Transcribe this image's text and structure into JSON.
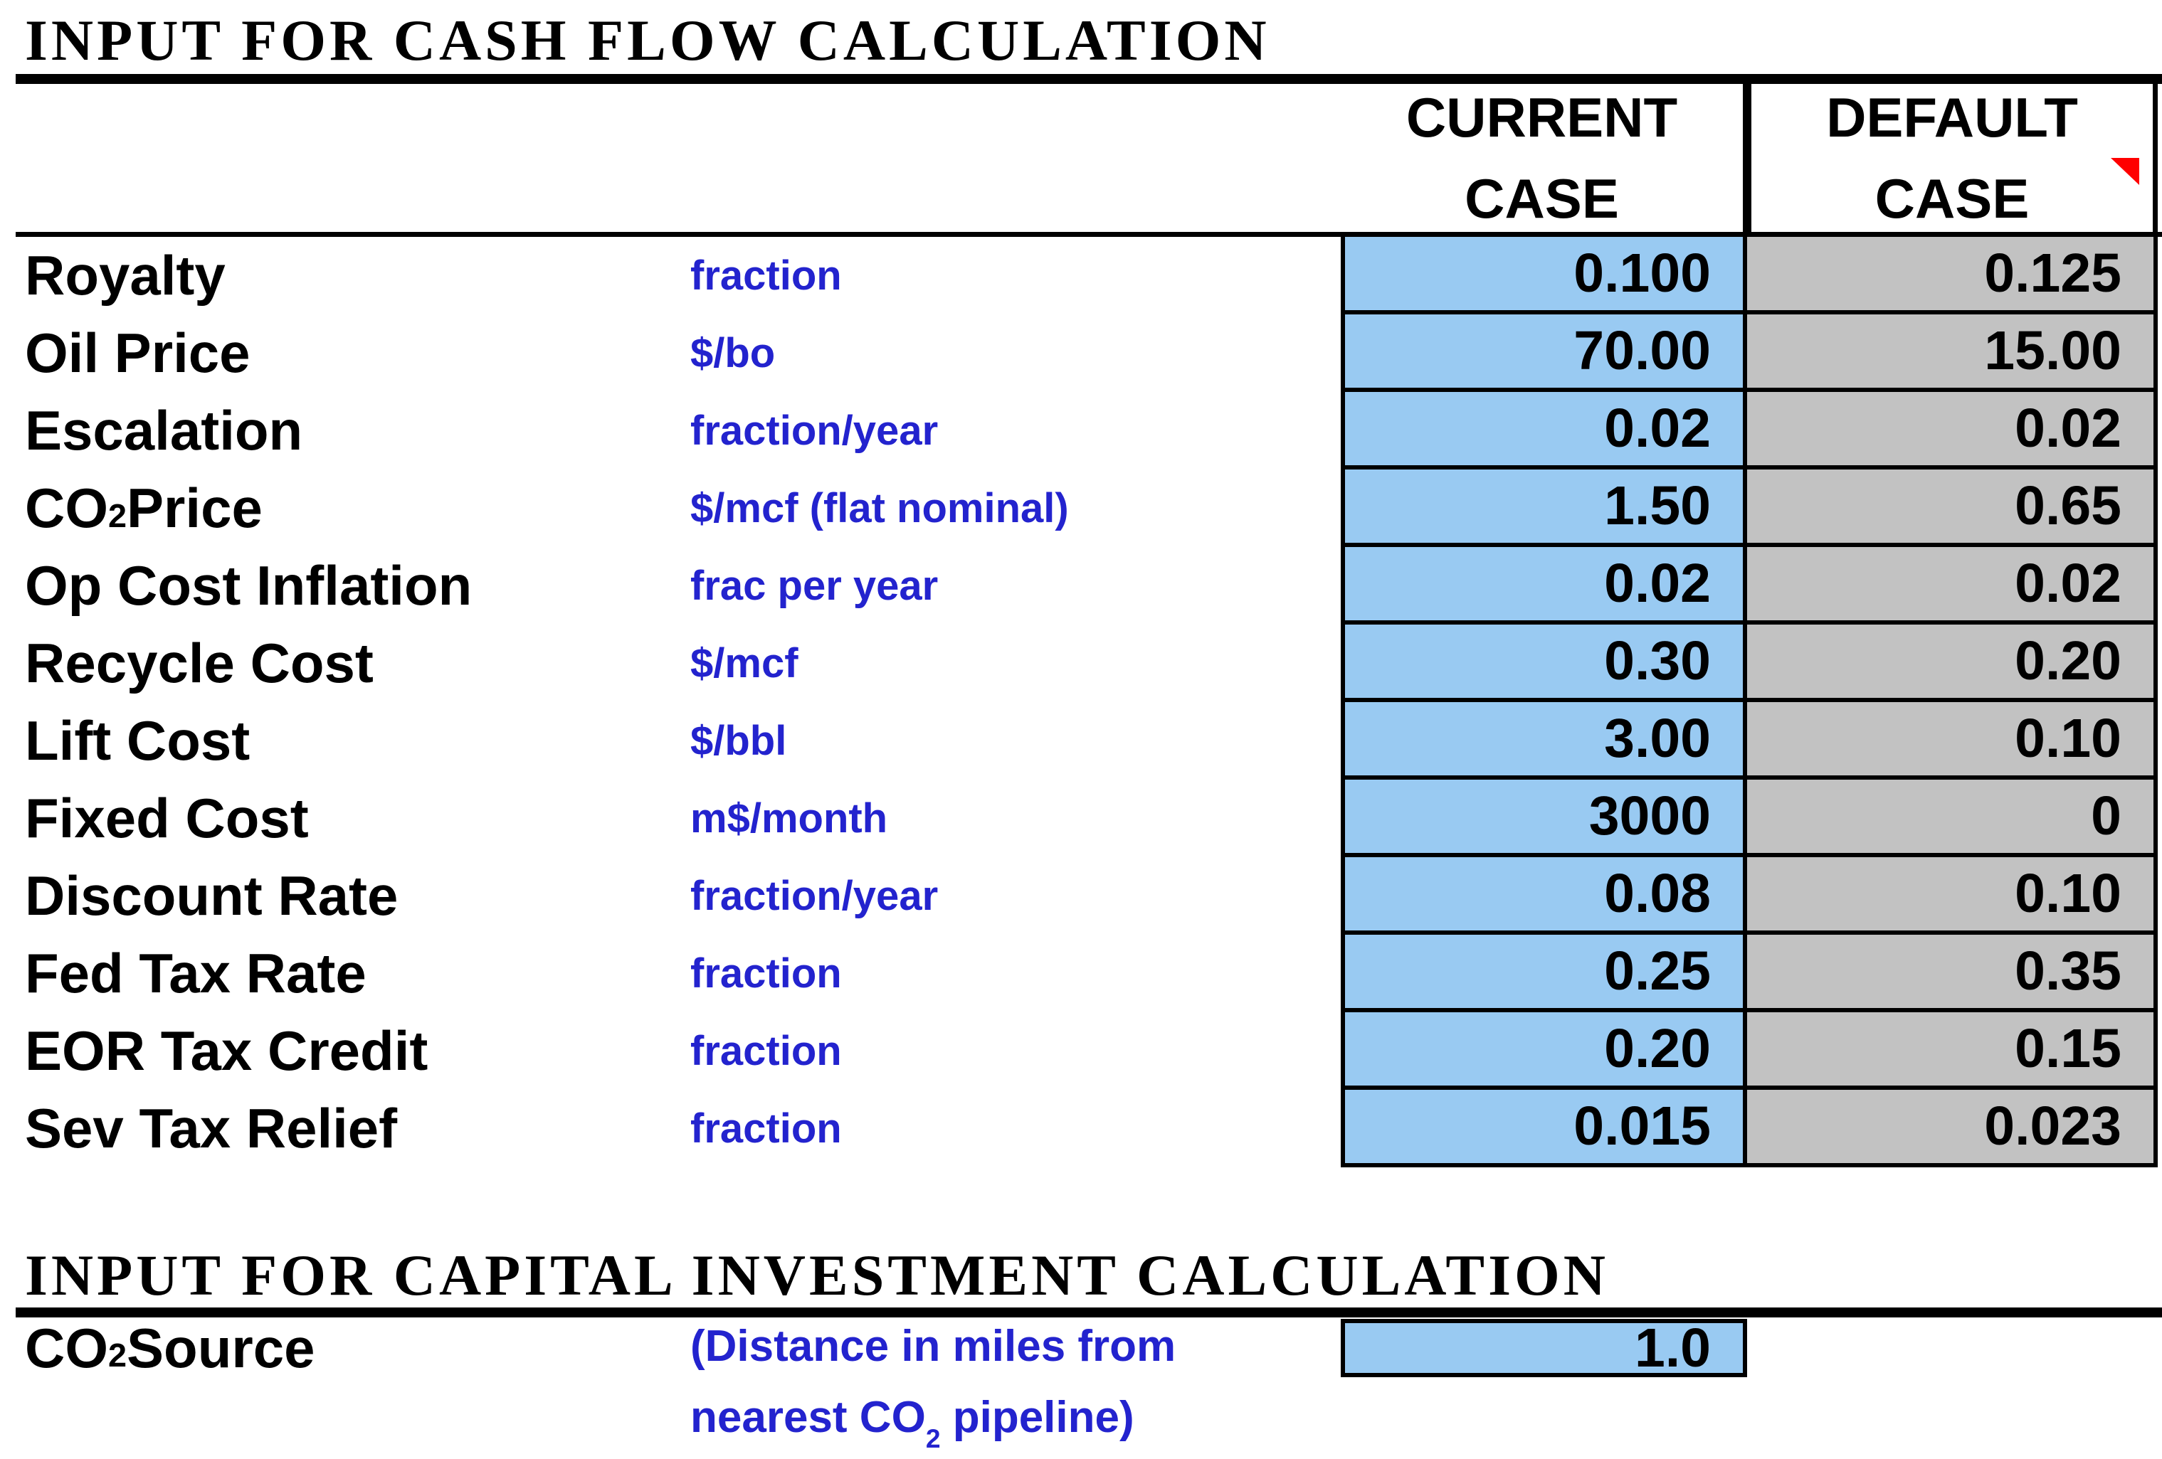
{
  "colors": {
    "input_cell_bg": "#99caf2",
    "default_cell_bg": "#c2c2c2",
    "unit_text": "#2323ce",
    "border": "#000000",
    "comment_indicator": "#ff0000"
  },
  "section1": {
    "title": "INPUT FOR CASH FLOW CALCULATION",
    "header": {
      "current_line1": "CURRENT",
      "current_line2": "CASE",
      "default_line1": "DEFAULT",
      "default_line2": "CASE",
      "comment_indicator_icon": "red-triangle"
    },
    "rows": [
      {
        "label_main": "Royalty",
        "label_sub": "",
        "label_tail": "",
        "unit": "fraction",
        "current": "0.100",
        "default": "0.125"
      },
      {
        "label_main": "Oil Price",
        "label_sub": "",
        "label_tail": "",
        "unit": "$/bo",
        "current": "70.00",
        "default": "15.00"
      },
      {
        "label_main": "Escalation",
        "label_sub": "",
        "label_tail": "",
        "unit": "fraction/year",
        "current": "0.02",
        "default": "0.02"
      },
      {
        "label_main": "CO",
        "label_sub": "2",
        "label_tail": " Price",
        "unit": "$/mcf (flat nominal)",
        "current": "1.50",
        "default": "0.65"
      },
      {
        "label_main": "Op Cost Inflation",
        "label_sub": "",
        "label_tail": "",
        "unit": "frac per year",
        "current": "0.02",
        "default": "0.02"
      },
      {
        "label_main": "Recycle Cost",
        "label_sub": "",
        "label_tail": "",
        "unit": "$/mcf",
        "current": "0.30",
        "default": "0.20"
      },
      {
        "label_main": "Lift Cost",
        "label_sub": "",
        "label_tail": "",
        "unit": "$/bbl",
        "current": "3.00",
        "default": "0.10"
      },
      {
        "label_main": "Fixed Cost",
        "label_sub": "",
        "label_tail": "",
        "unit": "m$/month",
        "current": "3000",
        "default": "0"
      },
      {
        "label_main": "Discount Rate",
        "label_sub": "",
        "label_tail": "",
        "unit": "fraction/year",
        "current": "0.08",
        "default": "0.10"
      },
      {
        "label_main": "Fed Tax Rate",
        "label_sub": "",
        "label_tail": "",
        "unit": "fraction",
        "current": "0.25",
        "default": "0.35"
      },
      {
        "label_main": "EOR Tax Credit",
        "label_sub": "",
        "label_tail": "",
        "unit": "fraction",
        "current": "0.20",
        "default": "0.15"
      },
      {
        "label_main": "Sev Tax Relief",
        "label_sub": "",
        "label_tail": "",
        "unit": "fraction",
        "current": "0.015",
        "default": "0.023"
      }
    ]
  },
  "section2": {
    "title": "INPUT FOR CAPITAL INVESTMENT CALCULATION",
    "row": {
      "label_main": "CO",
      "label_sub": "2",
      "label_tail": " Source",
      "note_line1": "(Distance in miles from",
      "note_line2_main": "nearest CO",
      "note_line2_sub": "2",
      "note_line2_tail": " pipeline)",
      "current": "1.0"
    }
  }
}
